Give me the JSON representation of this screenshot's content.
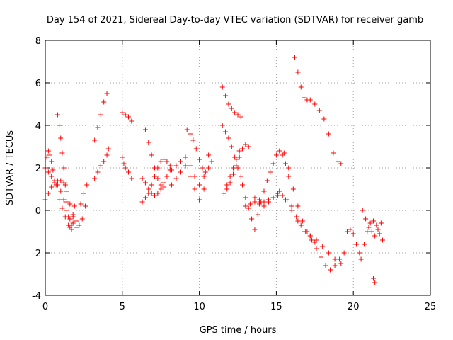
{
  "chart_data": {
    "type": "scatter",
    "title": "Day 154 of 2021, Sidereal Day-to-day VTEC variation (SDTVAR) for receiver gamb",
    "xlabel": "GPS time / hours",
    "ylabel": "SDTVAR / TECUs",
    "xlim": [
      0,
      25
    ],
    "ylim": [
      -4,
      8
    ],
    "xticks": [
      "0",
      "5",
      "10",
      "15",
      "20",
      "25"
    ],
    "yticks": [
      "-4",
      "-2",
      "0",
      "2",
      "4",
      "6",
      "8"
    ],
    "grid": true,
    "marker": "+",
    "color": "#ff0000",
    "series": [
      {
        "name": "SDTVAR",
        "x": [
          0.0,
          0.2,
          0.4,
          0.6,
          0.8,
          1.0,
          1.2,
          1.4,
          1.6,
          1.8,
          2.0,
          2.2,
          2.4,
          2.6,
          0.0,
          0.1,
          0.2,
          0.3,
          0.4,
          0.5,
          0.7,
          0.9,
          1.1,
          1.3,
          1.5,
          1.7,
          0.0,
          0.2,
          0.4,
          0.6,
          0.8,
          1.0,
          1.2,
          1.4,
          1.6,
          1.8,
          2.0,
          0.8,
          0.9,
          1.0,
          1.1,
          1.2,
          1.3,
          1.4,
          1.5,
          1.6,
          1.7,
          1.8,
          1.9,
          2.3,
          2.5,
          2.7,
          3.2,
          3.4,
          3.6,
          3.8,
          4.0,
          4.1,
          3.2,
          3.4,
          3.6,
          3.8,
          4.0,
          5.0,
          5.2,
          5.4,
          5.6,
          5.0,
          5.1,
          5.2,
          5.4,
          5.6,
          6.3,
          6.5,
          6.7,
          6.9,
          7.1,
          7.3,
          7.5,
          7.7,
          7.9,
          8.1,
          6.3,
          6.5,
          6.7,
          6.9,
          7.1,
          7.3,
          7.5,
          7.7,
          7.9,
          8.1,
          6.5,
          6.7,
          6.9,
          7.1,
          7.3,
          7.5,
          7.7,
          8.2,
          8.5,
          8.8,
          9.1,
          9.4,
          9.7,
          10.0,
          10.3,
          10.6,
          8.2,
          8.5,
          8.8,
          9.1,
          9.4,
          9.7,
          10.0,
          10.3,
          9.2,
          9.4,
          9.6,
          9.8,
          10.0,
          10.2,
          10.4,
          10.6,
          10.8,
          11.5,
          11.7,
          11.9,
          12.1,
          12.3,
          12.5,
          12.7,
          11.5,
          11.7,
          11.9,
          12.1,
          12.3,
          12.5,
          12.7,
          11.8,
          12.0,
          12.2,
          12.4,
          12.6,
          12.8,
          13.0,
          13.2,
          11.6,
          11.8,
          12.0,
          12.2,
          12.4,
          12.6,
          12.8,
          13.0,
          13.2,
          13.4,
          13.6,
          13.8,
          14.0,
          14.2,
          14.4,
          14.6,
          14.8,
          15.0,
          15.2,
          15.4,
          15.6,
          15.8,
          13.0,
          13.3,
          13.6,
          13.9,
          14.2,
          14.5,
          14.8,
          15.1,
          15.4,
          13.6,
          13.9,
          14.2,
          14.5,
          14.8,
          15.1,
          15.4,
          15.7,
          16.0,
          16.3,
          16.6,
          16.9,
          17.2,
          17.5,
          15.2,
          15.6,
          16.0,
          16.4,
          16.8,
          17.2,
          17.6,
          18.0,
          18.4,
          18.8,
          19.2,
          16.2,
          16.4,
          16.6,
          16.8,
          17.0,
          17.2,
          17.5,
          17.8,
          18.1,
          18.4,
          18.7,
          19.0,
          19.2,
          15.5,
          15.8,
          16.1,
          16.4,
          16.7,
          17.0,
          17.3,
          17.6,
          17.9,
          18.2,
          18.5,
          18.8,
          19.1,
          19.4,
          19.6,
          19.8,
          20.0,
          20.2,
          20.4,
          20.5,
          20.7,
          20.9,
          21.1,
          21.3,
          21.5,
          21.7,
          21.9,
          20.6,
          20.8,
          21.0,
          21.2,
          21.4,
          21.6,
          21.8,
          21.3,
          21.4
        ],
        "y": [
          0.5,
          0.8,
          1.1,
          1.3,
          1.4,
          1.4,
          1.3,
          0.9,
          0.3,
          -0.2,
          -0.5,
          -0.7,
          -0.4,
          0.2,
          2.0,
          2.5,
          2.8,
          2.6,
          2.3,
          1.9,
          1.2,
          0.5,
          0.1,
          -0.3,
          -0.7,
          -0.9,
          2.0,
          1.8,
          1.6,
          1.4,
          1.2,
          0.9,
          0.5,
          0.0,
          -0.4,
          -0.6,
          -0.8,
          4.5,
          4.0,
          3.4,
          2.7,
          2.0,
          1.2,
          0.4,
          -0.3,
          -0.8,
          -0.7,
          -0.3,
          0.2,
          0.3,
          0.8,
          1.2,
          1.5,
          1.8,
          2.1,
          2.3,
          2.6,
          2.9,
          3.3,
          3.9,
          4.5,
          5.1,
          5.5,
          4.6,
          4.5,
          4.4,
          4.2,
          2.5,
          2.2,
          2.0,
          1.8,
          1.5,
          1.5,
          1.3,
          1.0,
          0.8,
          0.7,
          0.8,
          1.0,
          1.3,
          1.6,
          1.9,
          0.4,
          0.6,
          0.8,
          1.2,
          1.6,
          2.0,
          2.3,
          2.4,
          2.3,
          2.1,
          3.8,
          3.2,
          2.6,
          2.0,
          1.5,
          1.2,
          1.1,
          1.9,
          2.1,
          2.3,
          2.5,
          2.1,
          1.6,
          1.2,
          1.6,
          2.6,
          1.2,
          1.5,
          1.8,
          2.1,
          1.6,
          1.0,
          0.5,
          1.0,
          3.8,
          3.6,
          3.3,
          2.9,
          2.4,
          2.0,
          1.8,
          2.0,
          2.3,
          5.8,
          5.4,
          5.0,
          4.8,
          4.6,
          4.5,
          4.4,
          4.0,
          3.7,
          3.4,
          3.0,
          2.5,
          2.0,
          1.6,
          1.0,
          1.3,
          1.7,
          2.1,
          2.5,
          2.9,
          3.1,
          3.0,
          0.8,
          1.2,
          1.6,
          2.0,
          2.4,
          2.8,
          1.2,
          0.6,
          0.1,
          -0.4,
          -0.9,
          -0.2,
          0.4,
          0.9,
          1.4,
          1.8,
          2.2,
          2.6,
          2.8,
          2.6,
          2.2,
          1.6,
          0.2,
          0.3,
          0.4,
          0.3,
          0.2,
          0.4,
          0.6,
          0.8,
          0.7,
          0.6,
          0.5,
          0.4,
          0.5,
          0.6,
          0.7,
          0.7,
          0.5,
          0.2,
          -0.3,
          -0.7,
          -1.0,
          -1.2,
          -1.5,
          0.9,
          0.5,
          0.0,
          -0.5,
          -1.0,
          -1.2,
          -1.4,
          -1.7,
          -2.0,
          -2.3,
          -2.5,
          7.2,
          6.5,
          5.8,
          5.3,
          5.2,
          5.2,
          5.0,
          4.7,
          4.3,
          3.6,
          2.7,
          2.3,
          2.2,
          2.7,
          2.0,
          1.0,
          0.2,
          -0.5,
          -1.0,
          -1.4,
          -1.8,
          -2.2,
          -2.6,
          -2.8,
          -2.6,
          -2.3,
          -2.0,
          -1.0,
          -0.9,
          -1.1,
          -1.6,
          -2.0,
          -2.3,
          -1.6,
          -1.0,
          -0.6,
          -0.5,
          -0.7,
          -1.1,
          -1.4,
          0.0,
          -0.4,
          -0.8,
          -1.0,
          -1.2,
          -0.9,
          -0.6,
          -3.2,
          -3.4
        ]
      }
    ]
  }
}
